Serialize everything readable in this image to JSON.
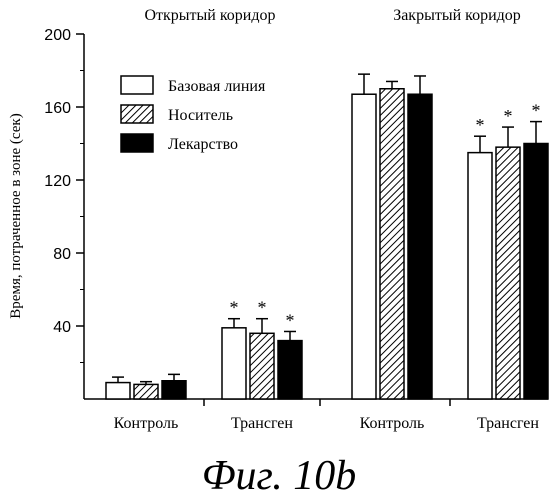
{
  "figure": {
    "caption": "Фиг. 10b"
  },
  "chart_data": {
    "type": "bar",
    "ylabel": "Время, потраченное в зоне (сек)",
    "ylim": [
      0,
      200
    ],
    "yticks": [
      40,
      80,
      120,
      160,
      200
    ],
    "group_titles": [
      "Открытый коридор",
      "Закрытый коридор"
    ],
    "categories": [
      "Контроль",
      "Трансген",
      "Контроль",
      "Трансген"
    ],
    "significance_marker": "*",
    "legend_position": "top-left",
    "series": [
      {
        "name": "Базовая линия",
        "fill": "white",
        "values": [
          9,
          39,
          167,
          135
        ],
        "errors": [
          3,
          5,
          11,
          9
        ],
        "significant": [
          false,
          true,
          false,
          true
        ]
      },
      {
        "name": "Носитель",
        "fill": "hatched",
        "values": [
          8,
          36,
          170,
          138
        ],
        "errors": [
          1.5,
          8,
          4,
          11
        ],
        "significant": [
          false,
          true,
          false,
          true
        ]
      },
      {
        "name": "Лекарство",
        "fill": "black",
        "values": [
          10,
          32,
          167,
          140
        ],
        "errors": [
          3.5,
          5,
          10,
          12
        ],
        "significant": [
          false,
          true,
          false,
          true
        ]
      }
    ]
  }
}
